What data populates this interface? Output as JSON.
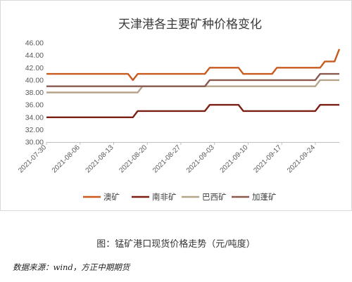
{
  "chart_data": {
    "type": "line",
    "title": "天津港各主要矿种价格变化",
    "xlabel": "",
    "ylabel": "",
    "ylim": [
      30,
      46
    ],
    "yticks": [
      "30.00",
      "32.00",
      "34.00",
      "36.00",
      "38.00",
      "40.00",
      "42.00",
      "44.00",
      "46.00"
    ],
    "xticks": [
      "2021-07-30",
      "2021-08-06",
      "2021-08-13",
      "2021-08-20",
      "2021-08-27",
      "2021-09-03",
      "2021-09-10",
      "2021-09-17",
      "2021-09-24"
    ],
    "x_range": [
      "2021-07-30",
      "2021-09-29"
    ],
    "grid": false,
    "legend_position": "bottom",
    "series": [
      {
        "name": "澳矿",
        "color": "#c85a1e",
        "points": [
          [
            "2021-07-30",
            41
          ],
          [
            "2021-08-16",
            41
          ],
          [
            "2021-08-17",
            40
          ],
          [
            "2021-08-18",
            41
          ],
          [
            "2021-09-01",
            41
          ],
          [
            "2021-09-02",
            42
          ],
          [
            "2021-09-08",
            42
          ],
          [
            "2021-09-09",
            41
          ],
          [
            "2021-09-15",
            41
          ],
          [
            "2021-09-16",
            42
          ],
          [
            "2021-09-25",
            42
          ],
          [
            "2021-09-26",
            43
          ],
          [
            "2021-09-28",
            43
          ],
          [
            "2021-09-29",
            45
          ]
        ]
      },
      {
        "name": "南非矿",
        "color": "#7b1f14",
        "points": [
          [
            "2021-07-30",
            34
          ],
          [
            "2021-08-17",
            34
          ],
          [
            "2021-08-18",
            35
          ],
          [
            "2021-09-01",
            35
          ],
          [
            "2021-09-02",
            36
          ],
          [
            "2021-09-08",
            36
          ],
          [
            "2021-09-09",
            35
          ],
          [
            "2021-09-24",
            35
          ],
          [
            "2021-09-25",
            36
          ],
          [
            "2021-09-29",
            36
          ]
        ]
      },
      {
        "name": "巴西矿",
        "color": "#b5a489",
        "points": [
          [
            "2021-07-30",
            38
          ],
          [
            "2021-08-18",
            38
          ],
          [
            "2021-08-19",
            39
          ],
          [
            "2021-09-24",
            39
          ],
          [
            "2021-09-25",
            40
          ],
          [
            "2021-09-29",
            40
          ]
        ]
      },
      {
        "name": "加蓬矿",
        "color": "#8a5a4e",
        "points": [
          [
            "2021-07-30",
            39
          ],
          [
            "2021-09-01",
            39
          ],
          [
            "2021-09-02",
            40
          ],
          [
            "2021-09-24",
            40
          ],
          [
            "2021-09-25",
            41
          ],
          [
            "2021-09-29",
            41
          ]
        ]
      }
    ]
  },
  "caption": "图：锰矿港口现货价格走势（元/吨度）",
  "source": "数据来源：wind，方正中期期货"
}
